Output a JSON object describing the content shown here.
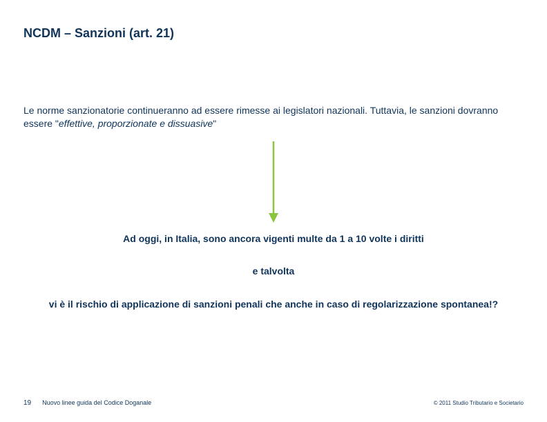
{
  "colors": {
    "title": "#10345a",
    "body": "#10345a",
    "footer": "#10345a",
    "arrow_stroke": "#8bc53f",
    "arrow_fill": "#8bc53f",
    "background": "#ffffff"
  },
  "fonts": {
    "title_size": 18,
    "body_size": 14,
    "center_size": 14,
    "footer_page_size": 10,
    "footer_text_size": 9,
    "copyright_size": 8
  },
  "title": "NCDM – Sanzioni (art. 21)",
  "intro": {
    "pre": "Le norme sanzionatorie continueranno ad essere rimesse ai legislatori nazionali. Tuttavia, le sanzioni dovranno essere \"",
    "italic": "effettive, proporzionate e dissuasive",
    "post": "\""
  },
  "arrow": {
    "width": 20,
    "height": 120,
    "stroke_width": 2.5,
    "head_width": 14,
    "head_height": 14
  },
  "center": {
    "line1": "Ad oggi, in Italia, sono ancora vigenti multe da 1 a 10 volte i diritti",
    "line2": "e talvolta",
    "line3": "vi è il rischio di applicazione di sanzioni penali che anche in caso di regolarizzazione spontanea!?"
  },
  "footer": {
    "page": "19",
    "doc_title": "Nuovo linee guida del Codice Doganale",
    "copyright": "© 2011 Studio Tributario e Societario"
  }
}
